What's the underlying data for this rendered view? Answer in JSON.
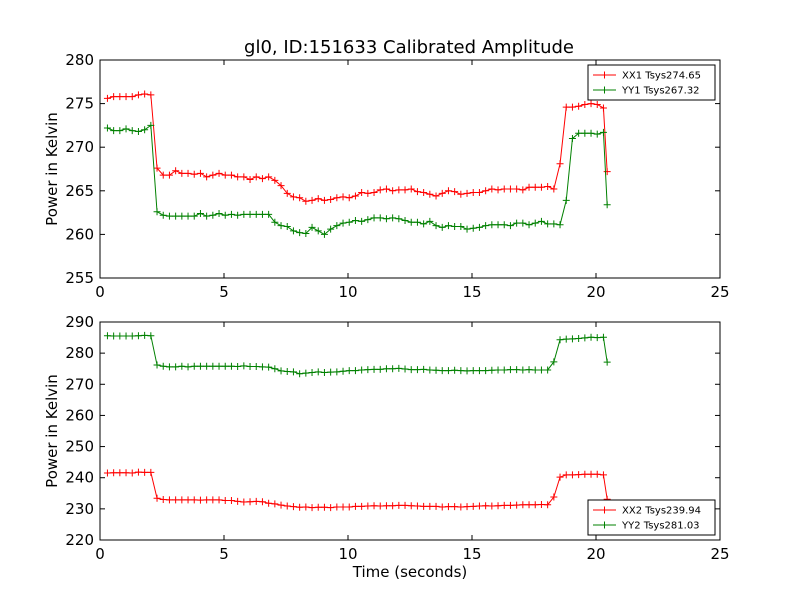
{
  "title": "gl0, ID:151633 Calibrated Amplitude",
  "colors": {
    "xx": "#ff0000",
    "yy": "#008000",
    "axes": "#000000",
    "background": "#ffffff"
  },
  "chart_data": [
    {
      "type": "line",
      "xlabel": "",
      "ylabel": "Power in Kelvin",
      "xlim": [
        0,
        25
      ],
      "ylim": [
        255,
        280
      ],
      "xticks": [
        0,
        5,
        10,
        15,
        20,
        25
      ],
      "yticks": [
        255,
        260,
        265,
        270,
        275,
        280
      ],
      "grid": false,
      "legend_position": "top-right",
      "marker": "+",
      "series": [
        {
          "name": "XX1 Tsys274.65",
          "color": "#ff0000",
          "x": [
            0.3,
            0.55,
            0.8,
            1.05,
            1.3,
            1.55,
            1.8,
            2.05,
            2.3,
            2.55,
            2.8,
            3.05,
            3.3,
            3.55,
            3.8,
            4.05,
            4.3,
            4.55,
            4.8,
            5.05,
            5.3,
            5.55,
            5.8,
            6.05,
            6.3,
            6.55,
            6.8,
            7.05,
            7.3,
            7.55,
            7.8,
            8.05,
            8.3,
            8.55,
            8.8,
            9.05,
            9.3,
            9.55,
            9.8,
            10.05,
            10.3,
            10.55,
            10.8,
            11.05,
            11.3,
            11.55,
            11.8,
            12.05,
            12.3,
            12.55,
            12.8,
            13.05,
            13.3,
            13.55,
            13.8,
            14.05,
            14.3,
            14.55,
            14.8,
            15.05,
            15.3,
            15.55,
            15.8,
            16.05,
            16.3,
            16.55,
            16.8,
            17.05,
            17.3,
            17.55,
            17.8,
            18.05,
            18.3,
            18.55,
            18.8,
            19.05,
            19.3,
            19.55,
            19.8,
            20.05,
            20.3,
            20.45
          ],
          "y": [
            275.6,
            275.8,
            275.8,
            275.8,
            275.8,
            276.0,
            276.1,
            276.0,
            267.6,
            266.8,
            266.8,
            267.3,
            267.0,
            267.0,
            266.9,
            267.0,
            266.6,
            266.8,
            267.0,
            266.8,
            266.8,
            266.6,
            266.6,
            266.3,
            266.6,
            266.4,
            266.6,
            266.2,
            265.6,
            264.7,
            264.3,
            264.2,
            263.8,
            263.9,
            264.1,
            263.9,
            264.0,
            264.2,
            264.3,
            264.2,
            264.4,
            264.8,
            264.7,
            264.8,
            265.1,
            265.2,
            265.0,
            265.1,
            265.1,
            265.2,
            264.9,
            264.8,
            264.6,
            264.4,
            264.7,
            265.0,
            264.9,
            264.6,
            264.7,
            264.8,
            264.8,
            265.0,
            265.2,
            265.1,
            265.2,
            265.2,
            265.2,
            265.1,
            265.4,
            265.4,
            265.4,
            265.5,
            265.2,
            268.1,
            274.6,
            274.6,
            274.7,
            274.9,
            275.0,
            274.9,
            274.5,
            267.2
          ]
        },
        {
          "name": "YY1 Tsys267.32",
          "color": "#008000",
          "x": [
            0.3,
            0.55,
            0.8,
            1.05,
            1.3,
            1.55,
            1.8,
            2.05,
            2.3,
            2.55,
            2.8,
            3.05,
            3.3,
            3.55,
            3.8,
            4.05,
            4.3,
            4.55,
            4.8,
            5.05,
            5.3,
            5.55,
            5.8,
            6.05,
            6.3,
            6.55,
            6.8,
            7.05,
            7.3,
            7.55,
            7.8,
            8.05,
            8.3,
            8.55,
            8.8,
            9.05,
            9.3,
            9.55,
            9.8,
            10.05,
            10.3,
            10.55,
            10.8,
            11.05,
            11.3,
            11.55,
            11.8,
            12.05,
            12.3,
            12.55,
            12.8,
            13.05,
            13.3,
            13.55,
            13.8,
            14.05,
            14.3,
            14.55,
            14.8,
            15.05,
            15.3,
            15.55,
            15.8,
            16.05,
            16.3,
            16.55,
            16.8,
            17.05,
            17.3,
            17.55,
            17.8,
            18.05,
            18.3,
            18.55,
            18.8,
            19.05,
            19.3,
            19.55,
            19.8,
            20.05,
            20.3,
            20.45
          ],
          "y": [
            272.2,
            271.9,
            271.9,
            272.1,
            271.9,
            271.8,
            272.0,
            272.5,
            262.6,
            262.2,
            262.1,
            262.1,
            262.1,
            262.1,
            262.1,
            262.4,
            262.1,
            262.2,
            262.4,
            262.2,
            262.3,
            262.2,
            262.3,
            262.3,
            262.3,
            262.3,
            262.3,
            261.4,
            261.0,
            260.9,
            260.4,
            260.2,
            260.1,
            260.8,
            260.4,
            260.0,
            260.6,
            261.0,
            261.3,
            261.4,
            261.6,
            261.5,
            261.7,
            261.9,
            261.9,
            261.8,
            261.9,
            261.8,
            261.6,
            261.4,
            261.4,
            261.2,
            261.5,
            261.0,
            260.8,
            261.0,
            260.9,
            260.9,
            260.6,
            260.7,
            260.8,
            261.0,
            261.1,
            261.1,
            261.1,
            261.0,
            261.3,
            261.3,
            261.1,
            261.3,
            261.5,
            261.2,
            261.2,
            261.1,
            263.9,
            271.0,
            271.6,
            271.6,
            271.6,
            271.5,
            271.7,
            263.4
          ]
        }
      ]
    },
    {
      "type": "line",
      "xlabel": "Time (seconds)",
      "ylabel": "Power in Kelvin",
      "xlim": [
        0,
        25
      ],
      "ylim": [
        220,
        290
      ],
      "xticks": [
        0,
        5,
        10,
        15,
        20,
        25
      ],
      "yticks": [
        220,
        230,
        240,
        250,
        260,
        270,
        280,
        290
      ],
      "grid": false,
      "legend_position": "bottom-right",
      "marker": "+",
      "series": [
        {
          "name": "XX2 Tsys239.94",
          "color": "#ff0000",
          "x": [
            0.3,
            0.55,
            0.8,
            1.05,
            1.3,
            1.55,
            1.8,
            2.05,
            2.3,
            2.55,
            2.8,
            3.05,
            3.3,
            3.55,
            3.8,
            4.05,
            4.3,
            4.55,
            4.8,
            5.05,
            5.3,
            5.55,
            5.8,
            6.05,
            6.3,
            6.55,
            6.8,
            7.05,
            7.3,
            7.55,
            7.8,
            8.05,
            8.3,
            8.55,
            8.8,
            9.05,
            9.3,
            9.55,
            9.8,
            10.05,
            10.3,
            10.55,
            10.8,
            11.05,
            11.3,
            11.55,
            11.8,
            12.05,
            12.3,
            12.55,
            12.8,
            13.05,
            13.3,
            13.55,
            13.8,
            14.05,
            14.3,
            14.55,
            14.8,
            15.05,
            15.3,
            15.55,
            15.8,
            16.05,
            16.3,
            16.55,
            16.8,
            17.05,
            17.3,
            17.55,
            17.8,
            18.05,
            18.3,
            18.55,
            18.8,
            19.05,
            19.3,
            19.55,
            19.8,
            20.05,
            20.3,
            20.45
          ],
          "y": [
            241.5,
            241.6,
            241.6,
            241.6,
            241.5,
            241.8,
            241.7,
            241.7,
            233.4,
            233.0,
            232.9,
            232.9,
            232.9,
            232.9,
            232.9,
            232.8,
            232.9,
            232.9,
            232.9,
            232.7,
            232.7,
            232.4,
            232.2,
            232.3,
            232.4,
            232.3,
            231.8,
            231.6,
            231.2,
            230.9,
            230.7,
            230.5,
            230.6,
            230.4,
            230.5,
            230.5,
            230.4,
            230.6,
            230.6,
            230.6,
            230.8,
            230.8,
            230.9,
            231.0,
            230.9,
            231.0,
            231.0,
            231.1,
            231.1,
            231.0,
            230.9,
            230.8,
            230.8,
            230.8,
            230.6,
            230.7,
            230.7,
            230.6,
            230.7,
            230.8,
            230.9,
            231.0,
            230.9,
            231.0,
            231.1,
            231.1,
            231.2,
            231.3,
            231.3,
            231.3,
            231.4,
            231.3,
            233.8,
            240.2,
            240.9,
            240.9,
            241.0,
            241.1,
            241.1,
            241.1,
            240.9,
            233.1
          ]
        },
        {
          "name": "YY2 Tsys281.03",
          "color": "#008000",
          "x": [
            0.3,
            0.55,
            0.8,
            1.05,
            1.3,
            1.55,
            1.8,
            2.05,
            2.3,
            2.55,
            2.8,
            3.05,
            3.3,
            3.55,
            3.8,
            4.05,
            4.3,
            4.55,
            4.8,
            5.05,
            5.3,
            5.55,
            5.8,
            6.05,
            6.3,
            6.55,
            6.8,
            7.05,
            7.3,
            7.55,
            7.8,
            8.05,
            8.3,
            8.55,
            8.8,
            9.05,
            9.3,
            9.55,
            9.8,
            10.05,
            10.3,
            10.55,
            10.8,
            11.05,
            11.3,
            11.55,
            11.8,
            12.05,
            12.3,
            12.55,
            12.8,
            13.05,
            13.3,
            13.55,
            13.8,
            14.05,
            14.3,
            14.55,
            14.8,
            15.05,
            15.3,
            15.55,
            15.8,
            16.05,
            16.3,
            16.55,
            16.8,
            17.05,
            17.3,
            17.55,
            17.8,
            18.05,
            18.3,
            18.55,
            18.8,
            19.05,
            19.3,
            19.55,
            19.8,
            20.05,
            20.3,
            20.45
          ],
          "y": [
            285.6,
            285.5,
            285.5,
            285.5,
            285.5,
            285.6,
            285.7,
            285.6,
            276.2,
            275.8,
            275.6,
            275.6,
            275.8,
            275.6,
            275.8,
            275.8,
            275.8,
            275.8,
            275.8,
            275.8,
            275.8,
            275.7,
            275.9,
            275.7,
            275.7,
            275.6,
            275.5,
            275.0,
            274.3,
            274.1,
            274.0,
            273.4,
            273.6,
            273.8,
            274.0,
            273.8,
            273.9,
            274.0,
            274.2,
            274.4,
            274.4,
            274.6,
            274.7,
            274.8,
            274.8,
            275.0,
            275.0,
            275.1,
            274.9,
            274.7,
            274.7,
            274.8,
            274.6,
            274.5,
            274.4,
            274.4,
            274.5,
            274.4,
            274.3,
            274.4,
            274.4,
            274.4,
            274.5,
            274.6,
            274.6,
            274.7,
            274.7,
            274.6,
            274.7,
            274.6,
            274.6,
            274.6,
            277.2,
            284.3,
            284.5,
            284.6,
            284.7,
            284.9,
            285.1,
            285.0,
            285.1,
            277.1
          ]
        }
      ]
    }
  ]
}
